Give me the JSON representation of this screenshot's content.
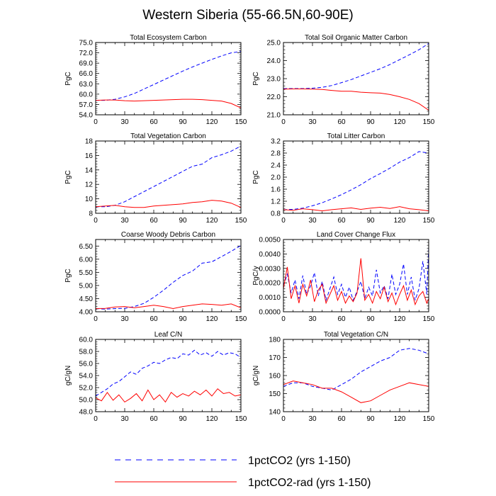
{
  "figure": {
    "title": "Western Siberia (55-66.5N,60-90E)",
    "legend": [
      {
        "label": "1pctCO2 (yrs 1-150)",
        "color": "#0000ff",
        "style": "dashed"
      },
      {
        "label": "1pctCO2-rad (yrs 1-150)",
        "color": "#ff0000",
        "style": "solid"
      }
    ]
  },
  "chart_data": [
    {
      "type": "line",
      "title": "Total Ecosystem Carbon",
      "ylabel": "PgC",
      "xlim": [
        0,
        150
      ],
      "ylim": [
        54,
        75
      ],
      "xticks": [
        0,
        30,
        60,
        90,
        120,
        150
      ],
      "yticks": [
        54,
        57,
        60,
        63,
        66,
        69,
        72,
        75
      ],
      "ytick_labels": [
        "54.0",
        "57.0",
        "60.0",
        "63.0",
        "66.0",
        "69.0",
        "72.0",
        "75.0"
      ],
      "series": [
        {
          "name": "1pctCO2 (yrs 1-150)",
          "color": "#0000ff",
          "style": "dashed",
          "x": [
            0,
            10,
            20,
            30,
            40,
            50,
            60,
            70,
            80,
            90,
            100,
            110,
            120,
            130,
            140,
            150
          ],
          "y": [
            58.2,
            58.2,
            58.5,
            59.2,
            60.2,
            61.5,
            62.8,
            64.1,
            65.4,
            66.7,
            67.9,
            69.0,
            70.1,
            71.1,
            72.0,
            72.4
          ]
        },
        {
          "name": "1pctCO2-rad (yrs 1-150)",
          "color": "#ff0000",
          "style": "solid",
          "x": [
            0,
            10,
            20,
            30,
            40,
            50,
            60,
            70,
            80,
            90,
            100,
            110,
            120,
            130,
            140,
            150
          ],
          "y": [
            58.2,
            58.3,
            58.3,
            58.1,
            58.0,
            58.1,
            58.2,
            58.3,
            58.4,
            58.5,
            58.5,
            58.4,
            58.2,
            58.0,
            57.3,
            56.0
          ]
        }
      ]
    },
    {
      "type": "line",
      "title": "Total Soil Organic Matter Carbon",
      "ylabel": "PgC",
      "xlim": [
        0,
        150
      ],
      "ylim": [
        21,
        25
      ],
      "xticks": [
        0,
        30,
        60,
        90,
        120,
        150
      ],
      "yticks": [
        21,
        22,
        23,
        24,
        25
      ],
      "ytick_labels": [
        "21.0",
        "22.0",
        "23.0",
        "24.0",
        "25.0"
      ],
      "series": [
        {
          "name": "1pctCO2 (yrs 1-150)",
          "color": "#0000ff",
          "style": "dashed",
          "x": [
            0,
            10,
            20,
            30,
            40,
            50,
            60,
            70,
            80,
            90,
            100,
            110,
            120,
            130,
            140,
            150
          ],
          "y": [
            22.45,
            22.45,
            22.45,
            22.47,
            22.52,
            22.62,
            22.78,
            22.95,
            23.15,
            23.35,
            23.55,
            23.78,
            24.05,
            24.32,
            24.6,
            24.95
          ]
        },
        {
          "name": "1pctCO2-rad (yrs 1-150)",
          "color": "#ff0000",
          "style": "solid",
          "x": [
            0,
            10,
            20,
            30,
            40,
            50,
            60,
            70,
            80,
            90,
            100,
            110,
            120,
            130,
            140,
            150
          ],
          "y": [
            22.42,
            22.43,
            22.43,
            22.42,
            22.4,
            22.35,
            22.3,
            22.3,
            22.25,
            22.22,
            22.2,
            22.12,
            22.0,
            21.85,
            21.62,
            21.25
          ]
        }
      ]
    },
    {
      "type": "line",
      "title": "Total Vegetation Carbon",
      "ylabel": "PgC",
      "xlim": [
        0,
        150
      ],
      "ylim": [
        8,
        18
      ],
      "xticks": [
        0,
        30,
        60,
        90,
        120,
        150
      ],
      "yticks": [
        8,
        10,
        12,
        14,
        16,
        18
      ],
      "ytick_labels": [
        "8",
        "10",
        "12",
        "14",
        "16",
        "18"
      ],
      "series": [
        {
          "name": "1pctCO2 (yrs 1-150)",
          "color": "#0000ff",
          "style": "dashed",
          "x": [
            0,
            10,
            20,
            30,
            40,
            50,
            60,
            70,
            80,
            90,
            100,
            110,
            120,
            130,
            140,
            150
          ],
          "y": [
            8.9,
            8.9,
            9.1,
            9.6,
            10.3,
            11.0,
            11.7,
            12.4,
            13.1,
            13.8,
            14.5,
            14.8,
            15.7,
            16.1,
            16.6,
            17.3
          ]
        },
        {
          "name": "1pctCO2-rad (yrs 1-150)",
          "color": "#ff0000",
          "style": "solid",
          "x": [
            0,
            10,
            20,
            30,
            40,
            50,
            60,
            70,
            80,
            90,
            100,
            110,
            120,
            130,
            140,
            150
          ],
          "y": [
            8.9,
            9.0,
            9.1,
            8.9,
            8.8,
            8.8,
            9.0,
            9.1,
            9.2,
            9.3,
            9.5,
            9.6,
            9.8,
            9.7,
            9.4,
            8.8
          ]
        }
      ]
    },
    {
      "type": "line",
      "title": "Total Litter Carbon",
      "ylabel": "PgC",
      "xlim": [
        0,
        150
      ],
      "ylim": [
        0.8,
        3.2
      ],
      "xticks": [
        0,
        30,
        60,
        90,
        120,
        150
      ],
      "yticks": [
        0.8,
        1.2,
        1.6,
        2.0,
        2.4,
        2.8,
        3.2
      ],
      "ytick_labels": [
        "0.8",
        "1.2",
        "1.6",
        "2.0",
        "2.4",
        "2.8",
        "3.2"
      ],
      "series": [
        {
          "name": "1pctCO2 (yrs 1-150)",
          "color": "#0000ff",
          "style": "dashed",
          "x": [
            0,
            10,
            20,
            30,
            40,
            50,
            60,
            70,
            80,
            90,
            100,
            110,
            120,
            130,
            140,
            150
          ],
          "y": [
            0.92,
            0.93,
            0.97,
            1.05,
            1.15,
            1.28,
            1.42,
            1.58,
            1.75,
            1.95,
            2.12,
            2.3,
            2.5,
            2.65,
            2.85,
            2.8
          ]
        },
        {
          "name": "1pctCO2-rad (yrs 1-150)",
          "color": "#ff0000",
          "style": "solid",
          "x": [
            0,
            10,
            20,
            30,
            40,
            50,
            60,
            70,
            80,
            90,
            100,
            110,
            120,
            130,
            140,
            150
          ],
          "y": [
            0.92,
            0.9,
            0.95,
            0.92,
            0.88,
            0.92,
            0.95,
            0.98,
            0.93,
            0.97,
            1.0,
            0.96,
            1.02,
            0.95,
            0.92,
            0.88
          ]
        }
      ]
    },
    {
      "type": "line",
      "title": "Coarse Woody Debris Carbon",
      "ylabel": "PgC",
      "xlim": [
        0,
        150
      ],
      "ylim": [
        4.0,
        6.75
      ],
      "xticks": [
        0,
        30,
        60,
        90,
        120,
        150
      ],
      "yticks": [
        4.0,
        4.5,
        5.0,
        5.5,
        6.0,
        6.5
      ],
      "ytick_labels": [
        "4.00",
        "4.50",
        "5.00",
        "5.50",
        "6.00",
        "6.50"
      ],
      "series": [
        {
          "name": "1pctCO2 (yrs 1-150)",
          "color": "#0000ff",
          "style": "dashed",
          "x": [
            0,
            10,
            20,
            30,
            40,
            50,
            60,
            70,
            80,
            90,
            100,
            110,
            120,
            130,
            140,
            150
          ],
          "y": [
            4.12,
            4.1,
            4.12,
            4.13,
            4.2,
            4.32,
            4.55,
            4.82,
            5.12,
            5.38,
            5.55,
            5.85,
            5.9,
            6.1,
            6.3,
            6.52
          ]
        },
        {
          "name": "1pctCO2-rad (yrs 1-150)",
          "color": "#ff0000",
          "style": "solid",
          "x": [
            0,
            10,
            20,
            30,
            40,
            50,
            60,
            70,
            80,
            90,
            100,
            110,
            120,
            130,
            140,
            150
          ],
          "y": [
            4.12,
            4.13,
            4.18,
            4.2,
            4.15,
            4.2,
            4.25,
            4.2,
            4.12,
            4.2,
            4.25,
            4.3,
            4.28,
            4.25,
            4.3,
            4.15
          ]
        }
      ]
    },
    {
      "type": "line",
      "title": "Land Cover Change Flux",
      "ylabel": "PgC/y",
      "xlim": [
        0,
        150
      ],
      "ylim": [
        0,
        0.005
      ],
      "xticks": [
        0,
        30,
        60,
        90,
        120,
        150
      ],
      "yticks": [
        0,
        0.001,
        0.002,
        0.003,
        0.004,
        0.005
      ],
      "ytick_labels": [
        "0.0000",
        "0.0010",
        "0.0020",
        "0.0030",
        "0.0040",
        "0.0050"
      ],
      "series": [
        {
          "name": "1pctCO2 (yrs 1-150)",
          "color": "#0000ff",
          "style": "dashed",
          "x": [
            0,
            4,
            8,
            12,
            16,
            20,
            24,
            28,
            32,
            36,
            40,
            44,
            48,
            52,
            56,
            60,
            64,
            68,
            72,
            76,
            80,
            84,
            88,
            92,
            96,
            100,
            104,
            108,
            112,
            116,
            120,
            124,
            128,
            132,
            136,
            140,
            144,
            148,
            150
          ],
          "y": [
            0.0018,
            0.0026,
            0.0013,
            0.0022,
            0.0009,
            0.0025,
            0.0012,
            0.0018,
            0.0027,
            0.0011,
            0.0021,
            0.0008,
            0.0016,
            0.0024,
            0.0012,
            0.0019,
            0.001,
            0.0017,
            0.0008,
            0.0014,
            0.0021,
            0.0009,
            0.0017,
            0.0011,
            0.0029,
            0.0013,
            0.0018,
            0.0009,
            0.0026,
            0.0012,
            0.0019,
            0.0033,
            0.0012,
            0.0024,
            0.0008,
            0.0016,
            0.0035,
            0.0012,
            0.0044
          ]
        },
        {
          "name": "1pctCO2-rad (yrs 1-150)",
          "color": "#ff0000",
          "style": "solid",
          "x": [
            0,
            4,
            8,
            12,
            16,
            20,
            24,
            28,
            32,
            36,
            40,
            44,
            48,
            52,
            56,
            60,
            64,
            68,
            72,
            76,
            80,
            84,
            88,
            92,
            96,
            100,
            104,
            108,
            112,
            116,
            120,
            124,
            128,
            132,
            136,
            140,
            144,
            148,
            150
          ],
          "y": [
            0.0016,
            0.0031,
            0.0009,
            0.0018,
            0.0006,
            0.0019,
            0.0011,
            0.0022,
            0.0007,
            0.0015,
            0.0019,
            0.0006,
            0.0012,
            0.0018,
            0.0008,
            0.0014,
            0.0006,
            0.0011,
            0.0007,
            0.0013,
            0.0037,
            0.0008,
            0.0012,
            0.0006,
            0.0014,
            0.0009,
            0.0017,
            0.0007,
            0.0013,
            0.0005,
            0.0012,
            0.0018,
            0.0008,
            0.0015,
            0.0005,
            0.0011,
            0.0014,
            0.0006,
            0.0009
          ]
        }
      ]
    },
    {
      "type": "line",
      "title": "Leaf C/N",
      "ylabel": "gC/gN",
      "xlim": [
        0,
        150
      ],
      "ylim": [
        48,
        60
      ],
      "xticks": [
        0,
        30,
        60,
        90,
        120,
        150
      ],
      "yticks": [
        48,
        50,
        52,
        54,
        56,
        58,
        60
      ],
      "ytick_labels": [
        "48.0",
        "50.0",
        "52.0",
        "54.0",
        "56.0",
        "58.0",
        "60.0"
      ],
      "series": [
        {
          "name": "1pctCO2 (yrs 1-150)",
          "color": "#0000ff",
          "style": "dashed",
          "x": [
            0,
            6,
            12,
            18,
            24,
            30,
            36,
            42,
            48,
            54,
            60,
            66,
            72,
            78,
            84,
            90,
            96,
            102,
            108,
            114,
            120,
            126,
            132,
            138,
            144,
            150
          ],
          "y": [
            50.6,
            51.2,
            51.8,
            52.6,
            53.0,
            53.8,
            54.6,
            54.2,
            55.2,
            55.6,
            56.2,
            56.0,
            56.6,
            57.0,
            56.8,
            57.6,
            57.4,
            58.2,
            57.4,
            57.8,
            57.2,
            58.0,
            57.4,
            57.8,
            57.6,
            57.0
          ]
        },
        {
          "name": "1pctCO2-rad (yrs 1-150)",
          "color": "#ff0000",
          "style": "solid",
          "x": [
            0,
            6,
            12,
            18,
            24,
            30,
            36,
            42,
            48,
            54,
            60,
            66,
            72,
            78,
            84,
            90,
            96,
            102,
            108,
            114,
            120,
            126,
            132,
            138,
            144,
            150
          ],
          "y": [
            50.3,
            49.8,
            51.2,
            49.9,
            50.8,
            49.6,
            50.2,
            51.0,
            49.8,
            51.6,
            50.0,
            50.8,
            49.6,
            51.2,
            50.4,
            51.0,
            50.6,
            51.4,
            50.8,
            51.6,
            50.6,
            51.8,
            51.0,
            51.2,
            50.6,
            50.8
          ]
        }
      ]
    },
    {
      "type": "line",
      "title": "Total Vegetation C/N",
      "ylabel": "gC/gN",
      "xlim": [
        0,
        150
      ],
      "ylim": [
        140,
        180
      ],
      "xticks": [
        0,
        30,
        60,
        90,
        120,
        150
      ],
      "yticks": [
        140,
        150,
        160,
        170,
        180
      ],
      "ytick_labels": [
        "140",
        "150",
        "160",
        "170",
        "180"
      ],
      "series": [
        {
          "name": "1pctCO2 (yrs 1-150)",
          "color": "#0000ff",
          "style": "dashed",
          "x": [
            0,
            10,
            20,
            30,
            40,
            50,
            60,
            70,
            80,
            90,
            100,
            110,
            120,
            130,
            140,
            150
          ],
          "y": [
            154,
            156,
            156,
            154,
            153,
            152,
            155,
            158,
            162,
            165,
            168,
            170,
            174,
            175,
            174,
            172
          ]
        },
        {
          "name": "1pctCO2-rad (yrs 1-150)",
          "color": "#ff0000",
          "style": "solid",
          "x": [
            0,
            10,
            20,
            30,
            40,
            50,
            60,
            70,
            80,
            90,
            100,
            110,
            120,
            130,
            140,
            150
          ],
          "y": [
            155,
            157,
            156,
            155,
            153,
            153,
            151,
            148,
            145,
            146,
            149,
            152,
            154,
            156,
            155,
            154
          ]
        }
      ]
    }
  ]
}
